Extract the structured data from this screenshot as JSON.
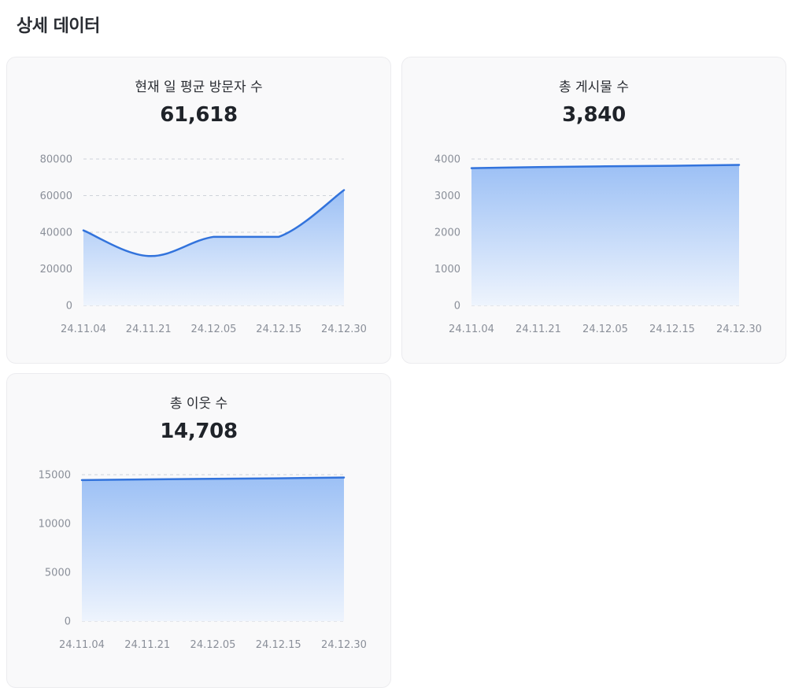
{
  "page": {
    "section_title": "상세 데이터",
    "colors": {
      "line": "#3273dc",
      "fill_top": "#9cc0f5",
      "fill_bottom": "#eef4fd",
      "card_bg": "#f9f9fa"
    }
  },
  "chart_data": [
    {
      "type": "area",
      "title": "현재 일 평균 방문자 수",
      "value_label": "61,618",
      "categories": [
        "24.11.04",
        "24.11.21",
        "24.12.05",
        "24.12.15",
        "24.12.30"
      ],
      "values": [
        41000,
        27000,
        37500,
        37500,
        63000
      ],
      "smooth": true,
      "ylim": [
        0,
        80000
      ],
      "yticks": [
        "0",
        "20000",
        "40000",
        "60000",
        "80000"
      ],
      "grid": true
    },
    {
      "type": "area",
      "title": "총 게시물 수",
      "value_label": "3,840",
      "categories": [
        "24.11.04",
        "24.11.21",
        "24.12.05",
        "24.12.15",
        "24.12.30"
      ],
      "values": [
        3750,
        3780,
        3800,
        3815,
        3840
      ],
      "smooth": false,
      "ylim": [
        0,
        4000
      ],
      "yticks": [
        "0",
        "1000",
        "2000",
        "3000",
        "4000"
      ],
      "grid": true
    },
    {
      "type": "area",
      "title": "총 이웃 수",
      "value_label": "14,708",
      "categories": [
        "24.11.04",
        "24.11.21",
        "24.12.05",
        "24.12.15",
        "24.12.30"
      ],
      "values": [
        14450,
        14520,
        14580,
        14630,
        14708
      ],
      "smooth": false,
      "ylim": [
        0,
        15000
      ],
      "yticks": [
        "0",
        "5000",
        "10000",
        "15000"
      ],
      "grid": true
    }
  ]
}
